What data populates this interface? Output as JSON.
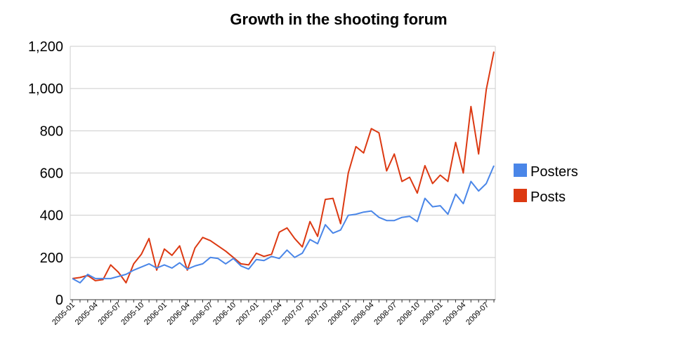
{
  "chart_data": {
    "type": "line",
    "title": "Growth in the shooting forum",
    "xlabel": "",
    "ylabel": "",
    "ylim": [
      0,
      1200
    ],
    "yticks": [
      "0",
      "200",
      "400",
      "600",
      "800",
      "1,000",
      "1,200"
    ],
    "x_tick_labels": [
      "2005-01",
      "2005-04",
      "2005-07",
      "2005-10",
      "2006-01",
      "2006-04",
      "2006-07",
      "2006-10",
      "2007-01",
      "2007-04",
      "2007-07",
      "2007-10",
      "2008-01",
      "2008-04",
      "2008-07",
      "2008-10",
      "2009-01",
      "2009-04",
      "2009-07"
    ],
    "grid": true,
    "legend": "right",
    "colors": {
      "Posters": "#4a86e8",
      "Posts": "#dc3912"
    },
    "series": [
      {
        "name": "Posters",
        "color": "#4a86e8",
        "values": [
          100,
          80,
          120,
          100,
          100,
          100,
          110,
          120,
          140,
          155,
          170,
          150,
          165,
          150,
          175,
          145,
          160,
          170,
          200,
          195,
          170,
          195,
          160,
          145,
          190,
          185,
          205,
          195,
          235,
          200,
          220,
          285,
          265,
          355,
          315,
          330,
          400,
          405,
          415,
          420,
          390,
          375,
          375,
          390,
          395,
          370,
          480,
          440,
          445,
          405,
          500,
          455,
          560,
          515,
          550,
          635
        ]
      },
      {
        "name": "Posts",
        "color": "#dc3912",
        "values": [
          100,
          105,
          115,
          90,
          95,
          165,
          130,
          80,
          170,
          215,
          290,
          140,
          240,
          210,
          255,
          140,
          245,
          295,
          280,
          255,
          230,
          200,
          170,
          165,
          220,
          205,
          215,
          320,
          340,
          290,
          250,
          370,
          300,
          475,
          480,
          360,
          600,
          725,
          695,
          810,
          790,
          610,
          690,
          560,
          580,
          505,
          635,
          550,
          590,
          560,
          745,
          600,
          915,
          690,
          995,
          1175
        ]
      }
    ]
  }
}
